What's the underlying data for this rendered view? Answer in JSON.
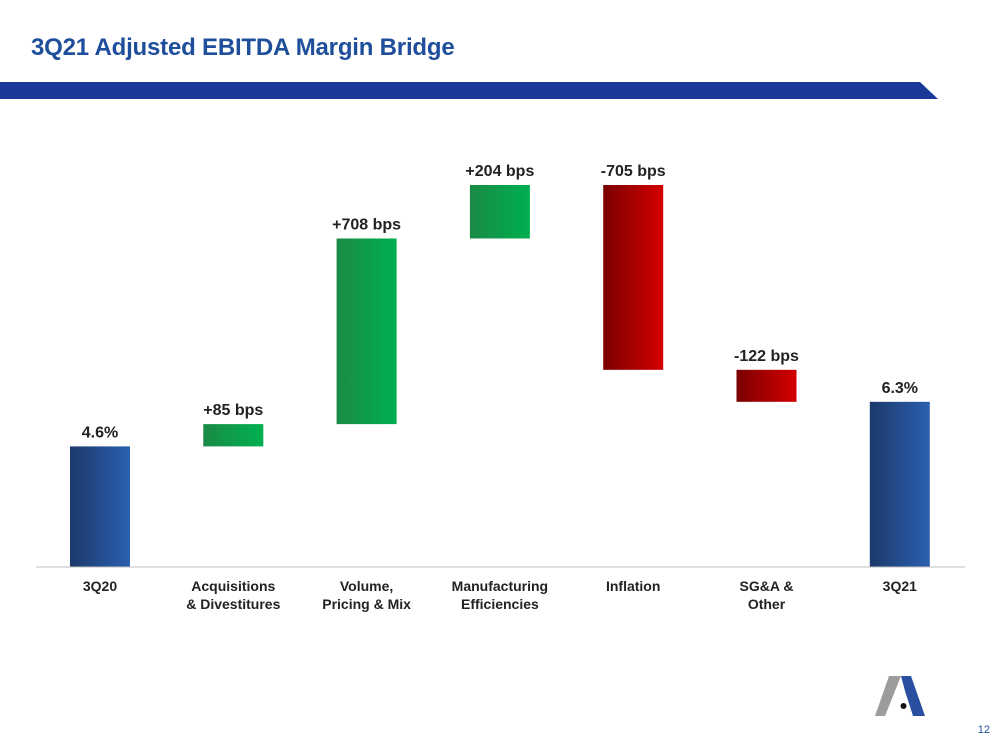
{
  "slide": {
    "title": "3Q21 Adjusted EBITDA Margin Bridge",
    "page_number": "12"
  },
  "colors": {
    "header_band": "#1a3a9a",
    "total_bar_dark": "#1c3a6b",
    "total_bar_light": "#2a5fb0",
    "increase_dark": "#1a8a45",
    "increase_light": "#00b050",
    "decrease_dark": "#7a0000",
    "decrease_light": "#d40000",
    "baseline": "#bfbfbf"
  },
  "chart_data": {
    "type": "bar",
    "subtype": "waterfall",
    "unit": "bps",
    "categories": [
      [
        "3Q20"
      ],
      [
        "Acquisitions",
        "& Divestitures"
      ],
      [
        "Volume,",
        "Pricing & Mix"
      ],
      [
        "Manufacturing",
        "Efficiencies"
      ],
      [
        "Inflation"
      ],
      [
        "SG&A &",
        "Other"
      ],
      [
        "3Q21"
      ]
    ],
    "steps": [
      {
        "kind": "total",
        "start": 0,
        "end": 460,
        "label": "4.6%"
      },
      {
        "kind": "increase",
        "start": 460,
        "end": 545,
        "label": "+85 bps"
      },
      {
        "kind": "increase",
        "start": 545,
        "end": 1253,
        "label": "+708 bps"
      },
      {
        "kind": "increase",
        "start": 1253,
        "end": 1457,
        "label": "+204 bps"
      },
      {
        "kind": "decrease",
        "start": 1457,
        "end": 752,
        "label": "-705 bps"
      },
      {
        "kind": "decrease",
        "start": 752,
        "end": 630,
        "label": "-122 bps"
      },
      {
        "kind": "total",
        "start": 0,
        "end": 630,
        "label": "6.3%"
      }
    ],
    "ylim": [
      0,
      1457
    ],
    "grid": false,
    "legend": "none"
  }
}
